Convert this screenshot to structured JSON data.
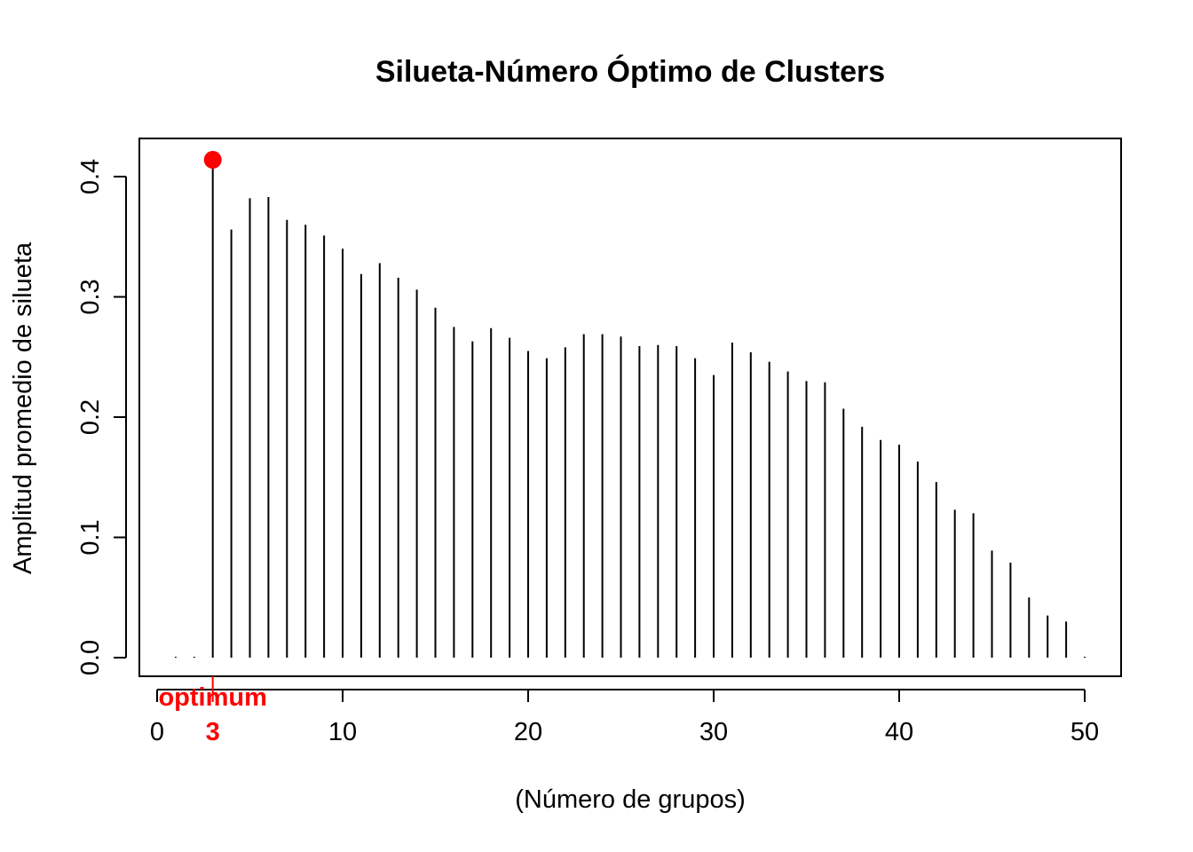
{
  "chart_data": {
    "type": "bar",
    "title": "Silueta-Número Óptimo de Clusters",
    "xlabel": "(Número de grupos)",
    "ylabel": "Amplitud promedio de  silueta",
    "xlim": [
      0,
      50
    ],
    "ylim": [
      0.0,
      0.4
    ],
    "x_ticks": [
      "0",
      "10",
      "20",
      "30",
      "40",
      "50"
    ],
    "y_ticks": [
      "0.0",
      "0.1",
      "0.2",
      "0.3",
      "0.4"
    ],
    "x": [
      1,
      2,
      3,
      4,
      5,
      6,
      7,
      8,
      9,
      10,
      11,
      12,
      13,
      14,
      15,
      16,
      17,
      18,
      19,
      20,
      21,
      22,
      23,
      24,
      25,
      26,
      27,
      28,
      29,
      30,
      31,
      32,
      33,
      34,
      35,
      36,
      37,
      38,
      39,
      40,
      41,
      42,
      43,
      44,
      45,
      46,
      47,
      48,
      49,
      50
    ],
    "values": [
      0,
      0,
      0.414,
      0.356,
      0.382,
      0.383,
      0.364,
      0.36,
      0.351,
      0.34,
      0.319,
      0.328,
      0.316,
      0.306,
      0.291,
      0.275,
      0.263,
      0.274,
      0.266,
      0.255,
      0.249,
      0.258,
      0.269,
      0.269,
      0.267,
      0.259,
      0.26,
      0.259,
      0.249,
      0.235,
      0.262,
      0.254,
      0.246,
      0.238,
      0.23,
      0.229,
      0.207,
      0.192,
      0.181,
      0.177,
      0.163,
      0.146,
      0.123,
      0.12,
      0.089,
      0.079,
      0.05,
      0.035,
      0.03,
      0
    ],
    "optimum": {
      "k": 3,
      "label": "optimum",
      "k_label": "3",
      "color": "#ff0000",
      "value": 0.414
    },
    "grid": false
  }
}
